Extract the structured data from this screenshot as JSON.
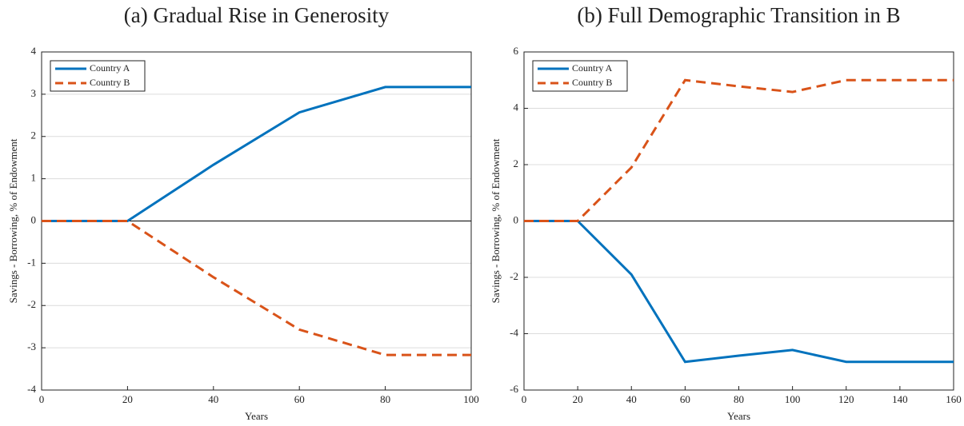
{
  "chart_data": [
    {
      "type": "line",
      "title": "(a) Gradual Rise in Generosity",
      "xlabel": "Years",
      "ylabel": "Savings - Borrowing, % of Endowment",
      "x": [
        0,
        20,
        40,
        60,
        80,
        100
      ],
      "series": [
        {
          "name": "Country A",
          "color": "#0072BD",
          "linestyle": "solid",
          "values": [
            0,
            0,
            1.33,
            2.57,
            3.17,
            3.17
          ]
        },
        {
          "name": "Country B",
          "color": "#D95319",
          "linestyle": "dashed",
          "values": [
            0,
            0,
            -1.33,
            -2.57,
            -3.17,
            -3.17
          ]
        }
      ],
      "xlim": [
        0,
        100
      ],
      "ylim": [
        -4,
        4
      ],
      "xticks": [
        0,
        20,
        40,
        60,
        80,
        100
      ],
      "yticks": [
        -4,
        -3,
        -2,
        -1,
        0,
        1,
        2,
        3,
        4
      ],
      "grid": true,
      "hline": 0,
      "legend": "upper left"
    },
    {
      "type": "line",
      "title": "(b) Full Demographic Transition in B",
      "xlabel": "Years",
      "ylabel": "Savings - Borrowing, % of Endowment",
      "x": [
        0,
        20,
        40,
        60,
        80,
        100,
        120,
        140,
        160
      ],
      "series": [
        {
          "name": "Country A",
          "color": "#0072BD",
          "linestyle": "solid",
          "values": [
            0,
            0,
            -1.9,
            -5,
            -4.78,
            -4.58,
            -5,
            -5,
            -5
          ]
        },
        {
          "name": "Country B",
          "color": "#D95319",
          "linestyle": "dashed",
          "values": [
            0,
            0,
            1.9,
            5,
            4.78,
            4.58,
            5,
            5,
            5
          ]
        }
      ],
      "xlim": [
        0,
        160
      ],
      "ylim": [
        -6,
        6
      ],
      "xticks": [
        0,
        20,
        40,
        60,
        80,
        100,
        120,
        140,
        160
      ],
      "yticks": [
        -6,
        -4,
        -2,
        0,
        2,
        4,
        6
      ],
      "grid": true,
      "hline": 0,
      "legend": "upper left"
    }
  ]
}
